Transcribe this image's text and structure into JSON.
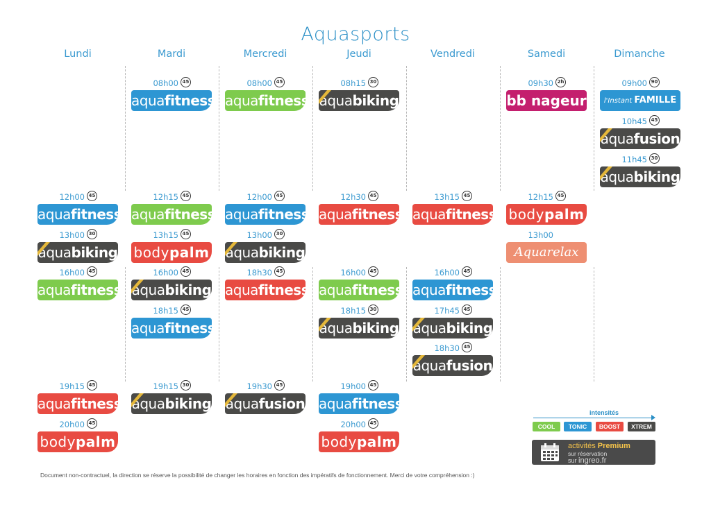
{
  "title": "Aquasports",
  "days": [
    "Lundi",
    "Mardi",
    "Mercredi",
    "Jeudi",
    "Vendredi",
    "Samedi",
    "Dimanche"
  ],
  "colors": {
    "cool": "#7ecb4d",
    "tonic": "#2d96d3",
    "boost": "#e84b42",
    "xtrem": "#4a4a48",
    "bb": "#c41f6e",
    "famille": "#2d96d3",
    "relax": "#ee8f72",
    "dur_stripe": "#e5b83a"
  },
  "sessions": [
    {
      "day": 0,
      "row": 3,
      "time": "12h00",
      "duration": "45",
      "kind": "aquafitness",
      "color": "tonic",
      "text_a": "aqua",
      "text_b": "fitness"
    },
    {
      "day": 0,
      "row": 4,
      "time": "13h00",
      "duration": "30",
      "kind": "aquabiking",
      "color": "xtrem",
      "text_a": "aqua",
      "text_b": "biking"
    },
    {
      "day": 0,
      "row": 5,
      "time": "16h00",
      "duration": "45",
      "kind": "aquafitness",
      "color": "cool",
      "text_a": "aqua",
      "text_b": "fitness"
    },
    {
      "day": 0,
      "row": 8,
      "time": "19h15",
      "duration": "45",
      "kind": "aquafitness",
      "color": "boost",
      "text_a": "aqua",
      "text_b": "fitness"
    },
    {
      "day": 0,
      "row": 9,
      "time": "20h00",
      "duration": "45",
      "kind": "bodypalm",
      "color": "boost",
      "text_a": "body",
      "text_b": "palm"
    },
    {
      "day": 1,
      "row": 0,
      "time": "08h00",
      "duration": "45",
      "kind": "aquafitness",
      "color": "tonic",
      "text_a": "aqua",
      "text_b": "fitness"
    },
    {
      "day": 1,
      "row": 3,
      "time": "12h15",
      "duration": "45",
      "kind": "aquafitness",
      "color": "cool",
      "text_a": "aqua",
      "text_b": "fitness"
    },
    {
      "day": 1,
      "row": 4,
      "time": "13h15",
      "duration": "45",
      "kind": "bodypalm",
      "color": "boost",
      "text_a": "body",
      "text_b": "palm"
    },
    {
      "day": 1,
      "row": 5,
      "time": "16h00",
      "duration": "45",
      "kind": "aquabiking",
      "color": "xtrem",
      "text_a": "aqua",
      "text_b": "biking"
    },
    {
      "day": 1,
      "row": 6,
      "time": "18h15",
      "duration": "45",
      "kind": "aquafitness",
      "color": "tonic",
      "text_a": "aqua",
      "text_b": "fitness"
    },
    {
      "day": 1,
      "row": 8,
      "time": "19h15",
      "duration": "30",
      "kind": "aquabiking",
      "color": "xtrem",
      "text_a": "aqua",
      "text_b": "biking"
    },
    {
      "day": 2,
      "row": 0,
      "time": "08h00",
      "duration": "45",
      "kind": "aquafitness",
      "color": "cool",
      "text_a": "aqua",
      "text_b": "fitness"
    },
    {
      "day": 2,
      "row": 3,
      "time": "12h00",
      "duration": "45",
      "kind": "aquafitness",
      "color": "tonic",
      "text_a": "aqua",
      "text_b": "fitness"
    },
    {
      "day": 2,
      "row": 4,
      "time": "13h00",
      "duration": "30",
      "kind": "aquabiking",
      "color": "xtrem",
      "text_a": "aqua",
      "text_b": "biking"
    },
    {
      "day": 2,
      "row": 5,
      "time": "18h30",
      "duration": "45",
      "kind": "aquafitness",
      "color": "boost",
      "text_a": "aqua",
      "text_b": "fitness"
    },
    {
      "day": 2,
      "row": 8,
      "time": "19h30",
      "duration": "45",
      "kind": "aquafusion",
      "color": "xtrem",
      "text_a": "aqua",
      "text_b": "fusion"
    },
    {
      "day": 3,
      "row": 0,
      "time": "08h15",
      "duration": "30",
      "kind": "aquabiking",
      "color": "xtrem",
      "text_a": "aqua",
      "text_b": "biking"
    },
    {
      "day": 3,
      "row": 3,
      "time": "12h30",
      "duration": "45",
      "kind": "aquafitness",
      "color": "boost",
      "text_a": "aqua",
      "text_b": "fitness"
    },
    {
      "day": 3,
      "row": 5,
      "time": "16h00",
      "duration": "45",
      "kind": "aquafitness",
      "color": "cool",
      "text_a": "aqua",
      "text_b": "fitness"
    },
    {
      "day": 3,
      "row": 6,
      "time": "18h15",
      "duration": "30",
      "kind": "aquabiking",
      "color": "xtrem",
      "text_a": "aqua",
      "text_b": "biking"
    },
    {
      "day": 3,
      "row": 8,
      "time": "19h00",
      "duration": "45",
      "kind": "aquafitness",
      "color": "tonic",
      "text_a": "aqua",
      "text_b": "fitness"
    },
    {
      "day": 3,
      "row": 9,
      "time": "20h00",
      "duration": "45",
      "kind": "bodypalm",
      "color": "boost",
      "text_a": "body",
      "text_b": "palm"
    },
    {
      "day": 4,
      "row": 3,
      "time": "13h15",
      "duration": "45",
      "kind": "aquafitness",
      "color": "boost",
      "text_a": "aqua",
      "text_b": "fitness"
    },
    {
      "day": 4,
      "row": 5,
      "time": "16h00",
      "duration": "45",
      "kind": "aquafitness",
      "color": "tonic",
      "text_a": "aqua",
      "text_b": "fitness"
    },
    {
      "day": 4,
      "row": 6,
      "time": "17h45",
      "duration": "45",
      "kind": "aquabiking",
      "color": "xtrem",
      "text_a": "aqua",
      "text_b": "biking"
    },
    {
      "day": 4,
      "row": 7,
      "time": "18h30",
      "duration": "45",
      "kind": "aquafusion",
      "color": "xtrem",
      "text_a": "aqua",
      "text_b": "fusion"
    },
    {
      "day": 5,
      "row": 0,
      "time": "09h30",
      "duration": "2h",
      "kind": "bbnageur",
      "color": "bb",
      "text_a": "bb nageur",
      "text_b": ""
    },
    {
      "day": 5,
      "row": 3,
      "time": "12h15",
      "duration": "45",
      "kind": "bodypalm",
      "color": "boost",
      "text_a": "body",
      "text_b": "palm"
    },
    {
      "day": 5,
      "row": 4,
      "time": "13h00",
      "duration": "",
      "kind": "aquarelax",
      "color": "relax",
      "text_a": "Aquarelax",
      "text_b": ""
    },
    {
      "day": 6,
      "row": 0,
      "time": "09h00",
      "duration": "90",
      "kind": "famille",
      "color": "famille",
      "text_a": "l'Instant ",
      "text_b": "FAMILLE"
    },
    {
      "day": 6,
      "row": 1,
      "time": "10h45",
      "duration": "45",
      "kind": "aquafusion",
      "color": "xtrem",
      "text_a": "aqua",
      "text_b": "fusion"
    },
    {
      "day": 6,
      "row": 2,
      "time": "11h45",
      "duration": "30",
      "kind": "aquabiking",
      "color": "xtrem",
      "text_a": "aqua",
      "text_b": "biking"
    }
  ],
  "legend": {
    "title": "intensités",
    "items": [
      {
        "label": "COOL",
        "color": "cool"
      },
      {
        "label": "TONIC",
        "color": "tonic"
      },
      {
        "label": "BOOST",
        "color": "boost"
      },
      {
        "label": "XTREM",
        "color": "xtrem"
      }
    ]
  },
  "premium": {
    "line1_a": "activités ",
    "line1_b": "Premium",
    "line2": "sur réservation",
    "line3_a": "sur ",
    "line3_b": "ingreo.fr"
  },
  "footer": "Document non-contractuel, la direction se réserve la possibilité de changer les horaires en fonction des impératifs de fonctionnement. Merci de votre compréhension :)"
}
